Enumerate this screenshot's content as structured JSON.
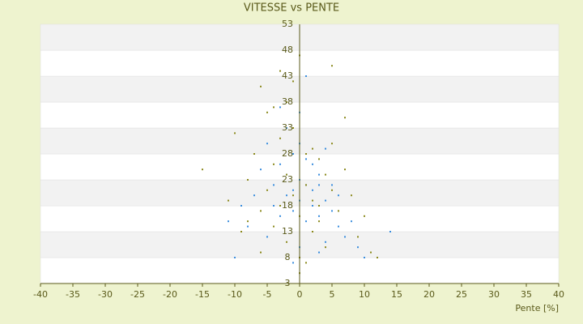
{
  "chart_data": {
    "type": "scatter",
    "title": "VITESSE vs PENTE",
    "x_label": "Pente [%]",
    "xlim": [
      -40,
      40
    ],
    "xticks": [
      -40,
      -35,
      -30,
      -25,
      -20,
      -15,
      -10,
      -5,
      0,
      5,
      10,
      15,
      20,
      25,
      30,
      35,
      40
    ],
    "ylim": [
      3,
      53
    ],
    "yticks": [
      3,
      8,
      13,
      18,
      23,
      28,
      33,
      38,
      43,
      48,
      53
    ],
    "grid": true,
    "series": [
      {
        "color": "#3b8ede",
        "x": [
          -10,
          -8,
          -7,
          -6,
          -5,
          -5,
          -4,
          -4,
          -3,
          -3,
          -2,
          -2,
          -2,
          -1,
          -1,
          -1,
          0,
          0,
          0,
          0,
          1,
          1,
          1,
          2,
          2,
          2,
          3,
          3,
          3,
          4,
          4,
          5,
          5,
          6,
          6,
          7,
          8,
          9,
          10,
          12,
          14,
          -11,
          -9,
          -3,
          0,
          1,
          2,
          -1,
          4,
          3
        ],
        "values": [
          8,
          14,
          20,
          25,
          12,
          30,
          18,
          22,
          26,
          16,
          20,
          24,
          33,
          17,
          21,
          28,
          10,
          19,
          23,
          36,
          15,
          22,
          27,
          18,
          21,
          13,
          16,
          24,
          9,
          19,
          11,
          17,
          22,
          14,
          20,
          12,
          15,
          10,
          8,
          8,
          13,
          15,
          18,
          37,
          30,
          43,
          26,
          7,
          29,
          22
        ]
      },
      {
        "color": "#8c8a1e",
        "x": [
          -15,
          -11,
          -10,
          -9,
          -8,
          -7,
          -6,
          -6,
          -5,
          -5,
          -4,
          -4,
          -3,
          -3,
          -2,
          -2,
          -1,
          -1,
          0,
          0,
          0,
          1,
          1,
          2,
          2,
          3,
          3,
          4,
          4,
          5,
          5,
          6,
          7,
          8,
          9,
          10,
          11,
          12,
          -6,
          -2,
          -1,
          2,
          7,
          -4,
          -3,
          0,
          1,
          5,
          -8,
          3
        ],
        "values": [
          25,
          19,
          32,
          13,
          23,
          28,
          9,
          17,
          21,
          36,
          14,
          26,
          18,
          31,
          11,
          24,
          20,
          42,
          16,
          47,
          8,
          28,
          22,
          13,
          19,
          27,
          15,
          24,
          10,
          21,
          45,
          17,
          35,
          20,
          12,
          16,
          9,
          8,
          41,
          38,
          33,
          29,
          25,
          37,
          44,
          5,
          7,
          30,
          15,
          18
        ]
      }
    ]
  }
}
